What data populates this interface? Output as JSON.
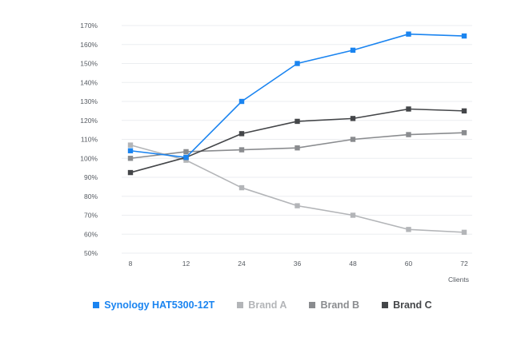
{
  "chart_data": {
    "type": "line",
    "title": "",
    "xlabel": "Clients",
    "ylabel": "",
    "categories": [
      "8",
      "12",
      "24",
      "36",
      "48",
      "60",
      "72"
    ],
    "y_ticks": [
      "50%",
      "60%",
      "70%",
      "80%",
      "90%",
      "100%",
      "110%",
      "120%",
      "130%",
      "140%",
      "150%",
      "160%",
      "170%"
    ],
    "ylim": [
      50,
      170
    ],
    "grid": true,
    "legend_position": "bottom",
    "series": [
      {
        "name": "Brand A",
        "color": "#b3b5b8",
        "values": [
          107,
          99,
          84.5,
          75,
          70,
          62.5,
          61
        ]
      },
      {
        "name": "Brand B",
        "color": "#8a8c8f",
        "values": [
          100,
          103.5,
          104.5,
          105.5,
          110,
          112.5,
          113.5
        ]
      },
      {
        "name": "Brand C",
        "color": "#444649",
        "values": [
          92.5,
          100.5,
          113,
          119.5,
          121,
          126,
          125
        ]
      },
      {
        "name": "Synology HAT5300-12T",
        "color": "#1a84f0",
        "values": [
          104,
          100.5,
          130,
          150,
          157,
          165.5,
          164.5
        ]
      }
    ],
    "legend_order": [
      "Synology HAT5300-12T",
      "Brand A",
      "Brand B",
      "Brand C"
    ]
  }
}
